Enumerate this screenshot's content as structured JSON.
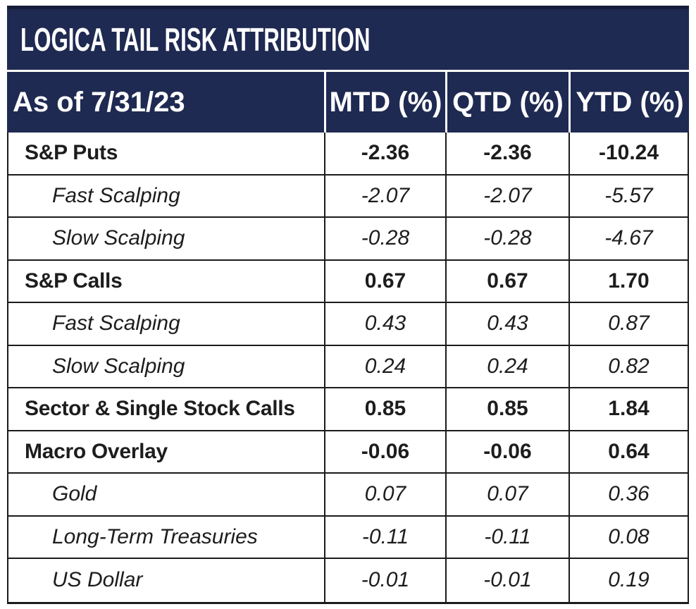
{
  "title": "LOGICA TAIL RISK ATTRIBUTION",
  "header": {
    "date_label": "As of 7/31/23",
    "columns": [
      "MTD (%)",
      "QTD (%)",
      "YTD (%)"
    ]
  },
  "rows": [
    {
      "label": "S&P Puts",
      "level": "main",
      "values": [
        "-2.36",
        "-2.36",
        "-10.24"
      ]
    },
    {
      "label": "Fast Scalping",
      "level": "sub",
      "values": [
        "-2.07",
        "-2.07",
        "-5.57"
      ]
    },
    {
      "label": "Slow Scalping",
      "level": "sub",
      "values": [
        "-0.28",
        "-0.28",
        "-4.67"
      ]
    },
    {
      "label": "S&P Calls",
      "level": "main",
      "values": [
        "0.67",
        "0.67",
        "1.70"
      ]
    },
    {
      "label": "Fast Scalping",
      "level": "sub",
      "values": [
        "0.43",
        "0.43",
        "0.87"
      ]
    },
    {
      "label": "Slow Scalping",
      "level": "sub",
      "values": [
        "0.24",
        "0.24",
        "0.82"
      ]
    },
    {
      "label": "Sector & Single Stock Calls",
      "level": "main",
      "values": [
        "0.85",
        "0.85",
        "1.84"
      ]
    },
    {
      "label": "Macro Overlay",
      "level": "main",
      "values": [
        "-0.06",
        "-0.06",
        "0.64"
      ]
    },
    {
      "label": "Gold",
      "level": "sub",
      "values": [
        "0.07",
        "0.07",
        "0.36"
      ]
    },
    {
      "label": "Long-Term Treasuries",
      "level": "sub",
      "values": [
        "-0.11",
        "-0.11",
        "0.08"
      ]
    },
    {
      "label": "US Dollar",
      "level": "sub",
      "values": [
        "-0.01",
        "-0.01",
        "0.19"
      ]
    }
  ],
  "colors": {
    "navy": "#1f2a52",
    "navy-dark": "#161d3a",
    "border": "#1b1b1b",
    "text": "#1d1d1d",
    "header-text": "#ffffff"
  }
}
